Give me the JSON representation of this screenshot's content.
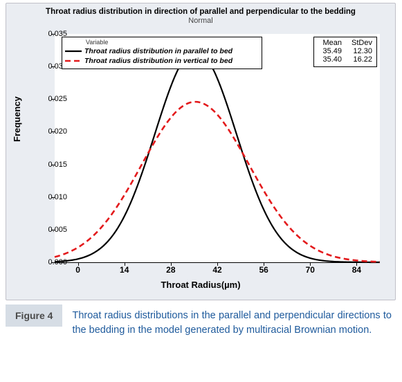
{
  "chart": {
    "type": "line",
    "title": "Throat radius distribution in direction of parallel and perpendicular to the bedding",
    "subtitle": "Normal",
    "xlabel": "Throat Radius(µm)",
    "ylabel": "Frequency",
    "background_color": "#eaedf2",
    "plot_background": "#ffffff",
    "border_color": "#c0c0c8",
    "title_fontsize": 11.5,
    "label_fontsize": 13,
    "tick_fontsize": 11,
    "xlim": [
      -7,
      91
    ],
    "ylim": [
      0.0,
      0.035
    ],
    "xticks": [
      0,
      14,
      28,
      42,
      56,
      70,
      84
    ],
    "yticks": [
      0.0,
      0.005,
      0.01,
      0.015,
      0.02,
      0.025,
      0.03,
      0.035
    ],
    "ytick_labels": [
      "0.000",
      "0.005",
      "0.010",
      "0.015",
      "0.020",
      "0.025",
      "0.030",
      "0.035"
    ],
    "series": [
      {
        "name": "parallel",
        "label": "Throat radius distribution in parallel to bed",
        "color": "#000000",
        "line_width": 2.2,
        "dash": "solid",
        "mean": 35.49,
        "stdev": 12.3
      },
      {
        "name": "vertical",
        "label": "Throat radius distribution in vertical to bed",
        "color": "#e31a1c",
        "line_width": 2.6,
        "dash": "8,5",
        "mean": 35.4,
        "stdev": 16.22
      }
    ],
    "legend": {
      "heading": "Variable",
      "position": "upper-left",
      "border_color": "#000000",
      "font_style": "italic bold"
    },
    "stats_table": {
      "headers": [
        "Mean",
        "StDev"
      ],
      "rows": [
        [
          "35.49",
          "12.30"
        ],
        [
          "35.40",
          "16.22"
        ]
      ],
      "position": "upper-right"
    }
  },
  "caption": {
    "badge": "Figure 4",
    "text": "Throat radius distributions in the parallel and perpendicular directions to the bedding in the model generated by multiracial Brownian motion.",
    "badge_bg": "#d6dde5",
    "badge_color": "#4a4a4a",
    "text_color": "#1e5a9c"
  }
}
